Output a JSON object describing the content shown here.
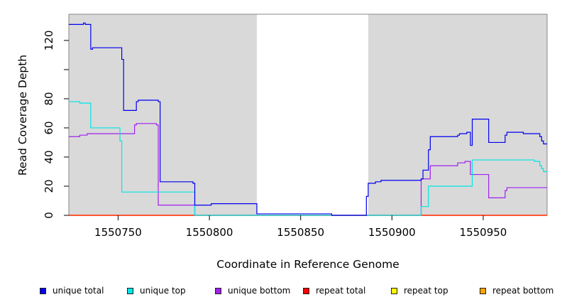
{
  "chart_data": {
    "type": "line",
    "xlabel": "Coordinate in Reference Genome",
    "ylabel": "Read Coverage Depth",
    "xlim": [
      1550723,
      1550985
    ],
    "ylim": [
      0,
      138
    ],
    "x_ticks": [
      1550750,
      1550800,
      1550850,
      1550900,
      1550950
    ],
    "y_ticks": [
      0,
      20,
      40,
      60,
      80,
      120
    ],
    "y_tick_marks": [
      0,
      20,
      40,
      60,
      80,
      100,
      120
    ],
    "shaded_regions": [
      [
        1550723,
        1550826
      ],
      [
        1550887,
        1550985
      ]
    ],
    "grid": false,
    "legend_position": "bottom",
    "series": [
      {
        "name": "unique total",
        "color": "#0000ee",
        "points": [
          [
            1550723,
            131
          ],
          [
            1550731,
            131
          ],
          [
            1550731,
            132
          ],
          [
            1550732,
            132
          ],
          [
            1550732,
            131
          ],
          [
            1550735,
            131
          ],
          [
            1550735,
            114
          ],
          [
            1550736,
            114
          ],
          [
            1550736,
            115
          ],
          [
            1550752,
            115
          ],
          [
            1550752,
            107
          ],
          [
            1550753,
            107
          ],
          [
            1550753,
            72
          ],
          [
            1550760,
            72
          ],
          [
            1550760,
            78
          ],
          [
            1550761,
            78
          ],
          [
            1550761,
            79
          ],
          [
            1550772,
            79
          ],
          [
            1550772,
            78
          ],
          [
            1550773,
            78
          ],
          [
            1550773,
            23
          ],
          [
            1550791,
            23
          ],
          [
            1550791,
            22
          ],
          [
            1550792,
            22
          ],
          [
            1550792,
            7
          ],
          [
            1550801,
            7
          ],
          [
            1550801,
            8
          ],
          [
            1550826,
            8
          ],
          [
            1550826,
            1
          ],
          [
            1550867,
            1
          ],
          [
            1550867,
            0
          ],
          [
            1550886,
            0
          ],
          [
            1550886,
            13
          ],
          [
            1550887,
            13
          ],
          [
            1550887,
            22
          ],
          [
            1550891,
            22
          ],
          [
            1550891,
            23
          ],
          [
            1550894,
            23
          ],
          [
            1550894,
            24
          ],
          [
            1550916,
            24
          ],
          [
            1550916,
            25
          ],
          [
            1550917,
            25
          ],
          [
            1550917,
            31
          ],
          [
            1550920,
            31
          ],
          [
            1550920,
            45
          ],
          [
            1550921,
            45
          ],
          [
            1550921,
            54
          ],
          [
            1550936,
            54
          ],
          [
            1550936,
            55
          ],
          [
            1550937,
            55
          ],
          [
            1550937,
            56
          ],
          [
            1550941,
            56
          ],
          [
            1550941,
            57
          ],
          [
            1550943,
            57
          ],
          [
            1550943,
            48
          ],
          [
            1550944,
            48
          ],
          [
            1550944,
            66
          ],
          [
            1550953,
            66
          ],
          [
            1550953,
            50
          ],
          [
            1550962,
            50
          ],
          [
            1550962,
            55
          ],
          [
            1550963,
            55
          ],
          [
            1550963,
            57
          ],
          [
            1550972,
            57
          ],
          [
            1550972,
            56
          ],
          [
            1550981,
            56
          ],
          [
            1550981,
            54
          ],
          [
            1550982,
            54
          ],
          [
            1550982,
            51
          ],
          [
            1550983,
            51
          ],
          [
            1550983,
            49
          ],
          [
            1550985,
            49
          ]
        ]
      },
      {
        "name": "unique top",
        "color": "#00e5e5",
        "points": [
          [
            1550723,
            78
          ],
          [
            1550729,
            78
          ],
          [
            1550729,
            77
          ],
          [
            1550735,
            77
          ],
          [
            1550735,
            60
          ],
          [
            1550751,
            60
          ],
          [
            1550751,
            51
          ],
          [
            1550752,
            51
          ],
          [
            1550752,
            16
          ],
          [
            1550792,
            16
          ],
          [
            1550792,
            0
          ],
          [
            1550916,
            0
          ],
          [
            1550916,
            6
          ],
          [
            1550920,
            6
          ],
          [
            1550920,
            20
          ],
          [
            1550944,
            20
          ],
          [
            1550944,
            38
          ],
          [
            1550978,
            38
          ],
          [
            1550978,
            37
          ],
          [
            1550981,
            37
          ],
          [
            1550981,
            34
          ],
          [
            1550982,
            34
          ],
          [
            1550982,
            32
          ],
          [
            1550983,
            32
          ],
          [
            1550983,
            30
          ],
          [
            1550985,
            30
          ]
        ]
      },
      {
        "name": "unique bottom",
        "color": "#a020f0",
        "points": [
          [
            1550723,
            54
          ],
          [
            1550729,
            54
          ],
          [
            1550729,
            55
          ],
          [
            1550733,
            55
          ],
          [
            1550733,
            56
          ],
          [
            1550759,
            56
          ],
          [
            1550759,
            62
          ],
          [
            1550760,
            62
          ],
          [
            1550760,
            63
          ],
          [
            1550771,
            63
          ],
          [
            1550771,
            62
          ],
          [
            1550772,
            62
          ],
          [
            1550772,
            7
          ],
          [
            1550792,
            7
          ],
          [
            1550792,
            0
          ],
          [
            1550916,
            0
          ],
          [
            1550916,
            25
          ],
          [
            1550921,
            25
          ],
          [
            1550921,
            34
          ],
          [
            1550936,
            34
          ],
          [
            1550936,
            36
          ],
          [
            1550940,
            36
          ],
          [
            1550940,
            37
          ],
          [
            1550943,
            37
          ],
          [
            1550943,
            28
          ],
          [
            1550953,
            28
          ],
          [
            1550953,
            12
          ],
          [
            1550962,
            12
          ],
          [
            1550962,
            17
          ],
          [
            1550963,
            17
          ],
          [
            1550963,
            19
          ],
          [
            1550985,
            19
          ]
        ]
      },
      {
        "name": "repeat total",
        "color": "#ff0000",
        "points": [
          [
            1550723,
            0
          ],
          [
            1550985,
            0
          ]
        ]
      },
      {
        "name": "repeat top",
        "color": "#ffff00",
        "points": [
          [
            1550723,
            0
          ],
          [
            1550985,
            0
          ]
        ]
      },
      {
        "name": "repeat bottom",
        "color": "#ffa500",
        "points": [
          [
            1550723,
            0
          ],
          [
            1550985,
            0
          ]
        ]
      }
    ]
  }
}
